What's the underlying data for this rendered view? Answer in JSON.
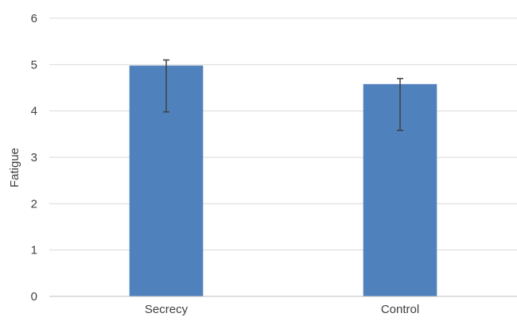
{
  "chart_data": {
    "type": "bar",
    "title": "",
    "xlabel": "",
    "ylabel": "Fatigue",
    "categories": [
      "Secrecy",
      "Control"
    ],
    "values": [
      4.98,
      4.58
    ],
    "error_bars": [
      {
        "low": 3.98,
        "high": 5.1
      },
      {
        "low": 3.58,
        "high": 4.7
      }
    ],
    "ylim": [
      0,
      6
    ],
    "yticks": [
      0,
      1,
      2,
      3,
      4,
      5,
      6
    ],
    "ytick_labels": [
      "0",
      "1",
      "2",
      "3",
      "4",
      "5",
      "6"
    ],
    "grid": true,
    "legend": "none",
    "colors": {
      "bar": "#4f81bd",
      "error_bar": "#404040",
      "grid": "#d9d9d9",
      "axis": "#bfbfbf"
    }
  }
}
